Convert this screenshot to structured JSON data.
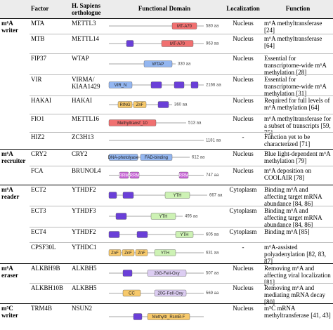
{
  "header": {
    "factor": "Factor",
    "orthologue": "H. Sapiens orthologue",
    "domain": "Functional Domain",
    "localization": "Localization",
    "function": "Function"
  },
  "groups": [
    {
      "category": "m⁶A writer",
      "rows": [
        {
          "factor": "MTA",
          "orthologue": "METTL3",
          "domains": [
            "MT-A70"
          ],
          "length": "580 aa",
          "localization": "Nucleus",
          "function": "m⁶A methyltransferase [24]"
        },
        {
          "factor": "MTB",
          "orthologue": "METTL14",
          "domains": [
            "MT-A70"
          ],
          "length": "963 aa",
          "localization": "Nucleus",
          "function": "m⁶A methyltransferase [64]"
        },
        {
          "factor": "FIP37",
          "orthologue": "WTAP",
          "domains": [
            "WTAP"
          ],
          "length": "330 aa",
          "localization": "Nucleus",
          "function": "Essential for transcriptome-wide m⁶A methylation [28]"
        },
        {
          "factor": "VIR",
          "orthologue": "VIRMA/ KIAA1429",
          "domains": [
            "VIR_N"
          ],
          "length": "2166 aa",
          "localization": "Nucleus",
          "function": "Essential for transcriptome-wide m⁶A methylation [31]"
        },
        {
          "factor": "HAKAI",
          "orthologue": "HAKAI",
          "domains": [
            "RING",
            "ZnF"
          ],
          "length": "360 aa",
          "localization": "Nucleus",
          "function": "Required for full levels of m⁶A methylation [64]"
        },
        {
          "factor": "FIO1",
          "orthologue": "METTL16",
          "domains": [
            "Methyltransf_10"
          ],
          "length": "513 aa",
          "localization": "Nucleus",
          "function": "m⁶A methyltransferase for a subset of transcripts [59, 75]"
        },
        {
          "factor": "HIZ2",
          "orthologue": "ZC3H13",
          "domains": [],
          "length": "1181 aa",
          "localization": "-",
          "function": "Function yet to be characterized [71]"
        }
      ]
    },
    {
      "category": "m⁶A recruiter",
      "rows": [
        {
          "factor": "CRY2",
          "orthologue": "CRY2",
          "domains": [
            "DNA-photolyase",
            "FAD-binding"
          ],
          "length": "612 aa",
          "localization": "Nucleus",
          "function": "Blue light-dependent m⁶A methylation [79]"
        },
        {
          "factor": "FCA",
          "orthologue": "BRUNOL4",
          "domains": [
            "RRM",
            "RRM",
            "RRM"
          ],
          "length": "747 aa",
          "localization": "Nucleus",
          "function": "m⁶A deposition on COOLAIR [78]"
        }
      ]
    },
    {
      "category": "m⁶A reader",
      "rows": [
        {
          "factor": "ECT2",
          "orthologue": "YTHDF2",
          "domains": [
            "YTH"
          ],
          "length": "667 aa",
          "localization": "Cytoplasm",
          "function": "Binding m⁶A and affecting target mRNA abundance [84, 86]"
        },
        {
          "factor": "ECT3",
          "orthologue": "YTHDF3",
          "domains": [
            "YTH"
          ],
          "length": "495 aa",
          "localization": "Cytoplasm",
          "function": "Binding m⁶A and affecting target mRNA abundance [84, 86]"
        },
        {
          "factor": "ECT4",
          "orthologue": "YTHDF2",
          "domains": [
            "YTH"
          ],
          "length": "605 aa",
          "localization": "Cytoplasm",
          "function": "Binding m⁶A [85]"
        },
        {
          "factor": "CPSF30L",
          "orthologue": "YTHDC1",
          "domains": [
            "ZnF",
            "ZnF",
            "ZnF",
            "YTH"
          ],
          "length": "631 aa",
          "localization": "-",
          "function": "m⁶A-assisted polyadenylation [82, 83, 87]"
        }
      ]
    },
    {
      "category": "m⁶A eraser",
      "rows": [
        {
          "factor": "ALKBH9B",
          "orthologue": "ALKBH5",
          "domains": [
            "20G-FeII-Oxy"
          ],
          "length": "507 aa",
          "localization": "Nucleus",
          "function": "Removing m⁶A and affecting viral localization [81]"
        },
        {
          "factor": "ALKBH10B",
          "orthologue": "ALKBH5",
          "domains": [
            "CC",
            "20G-FeII-Oxy"
          ],
          "length": "569 aa",
          "localization": "Nucleus",
          "function": "Removing m⁶A and mediating mRNA decay [80]"
        }
      ]
    },
    {
      "category": "m⁵C writer",
      "rows": [
        {
          "factor": "TRM4B",
          "orthologue": "NSUN2",
          "domains": [
            "Methyltr_RsmB-F"
          ],
          "localization": "Nucleus",
          "function": "m⁵C mRNA methyltransferase [41, 43]"
        }
      ]
    }
  ]
}
